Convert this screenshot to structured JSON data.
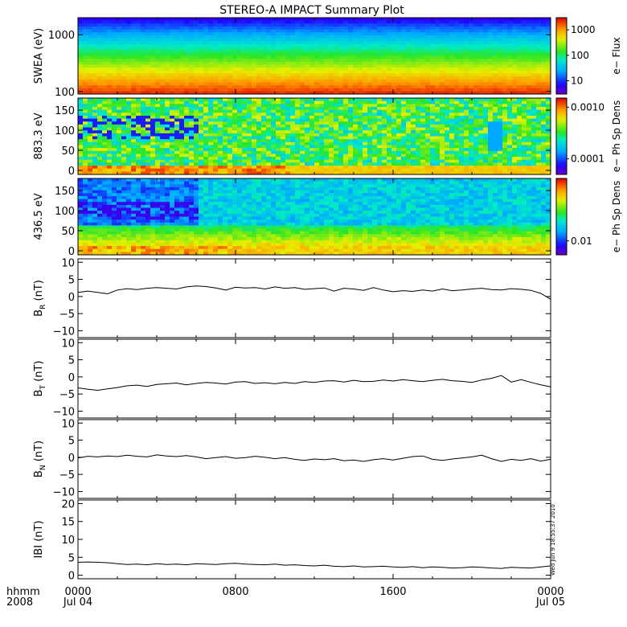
{
  "title": "STEREO-A IMPACT Summary Plot",
  "timestamp": "Wed Jun  9 18:55:37 2010",
  "time_axis": {
    "header": [
      "hhmm",
      "2008"
    ],
    "ticks": [
      {
        "time": "0000",
        "date": "Jul 04"
      },
      {
        "time": "0800",
        "date": ""
      },
      {
        "time": "1600",
        "date": ""
      },
      {
        "time": "0000",
        "date": "Jul 05"
      }
    ],
    "range_hours": [
      0,
      24
    ]
  },
  "chart_data": [
    {
      "type": "heatmap",
      "ylabel": "SWEA (eV)",
      "ylog": true,
      "ylim": [
        90,
        2000
      ],
      "yticks": [
        {
          "v": 100,
          "label": "100"
        },
        {
          "v": 1000,
          "label": "1000"
        }
      ],
      "colorbar": {
        "label": "e− Flux",
        "log": true,
        "range": [
          3,
          3000
        ],
        "ticks": [
          {
            "v": 10,
            "label": "10"
          },
          {
            "v": 100,
            "label": "100"
          },
          {
            "v": 1000,
            "label": "1000"
          }
        ]
      },
      "description_profile": [
        {
          "energy_eV": 100,
          "level": 0.97
        },
        {
          "energy_eV": 150,
          "level": 0.85
        },
        {
          "energy_eV": 300,
          "level": 0.62
        },
        {
          "energy_eV": 600,
          "level": 0.45
        },
        {
          "energy_eV": 1000,
          "level": 0.3
        },
        {
          "energy_eV": 1700,
          "level": 0.08
        }
      ]
    },
    {
      "type": "heatmap",
      "ylabel": "883.3 eV",
      "ylim": [
        -10,
        180
      ],
      "yticks": [
        {
          "v": 0,
          "label": "0"
        },
        {
          "v": 50,
          "label": "50"
        },
        {
          "v": 100,
          "label": "100"
        },
        {
          "v": 150,
          "label": "150"
        }
      ],
      "colorbar": {
        "label": "e− Ph Sp Dens",
        "log": true,
        "range": [
          5e-05,
          0.0015
        ],
        "ticks": [
          {
            "v": 0.0001,
            "label": "0.0001"
          },
          {
            "v": 0.001,
            "label": "0.0010"
          }
        ]
      }
    },
    {
      "type": "heatmap",
      "ylabel": "436.5 eV",
      "ylim": [
        -10,
        180
      ],
      "yticks": [
        {
          "v": 0,
          "label": "0"
        },
        {
          "v": 50,
          "label": "50"
        },
        {
          "v": 100,
          "label": "100"
        },
        {
          "v": 150,
          "label": "150"
        }
      ],
      "colorbar": {
        "label": "e− Ph Sp Dens",
        "log": true,
        "range": [
          0.006,
          0.1
        ],
        "ticks": [
          {
            "v": 0.01,
            "label": "0.01"
          }
        ]
      }
    },
    {
      "type": "line",
      "ylabel_main": "B",
      "ylabel_sub": "R",
      "ylabel_unit": " (nT)",
      "ylim": [
        -12,
        11
      ],
      "yticks": [
        {
          "v": -10,
          "label": "−10"
        },
        {
          "v": -5,
          "label": "−5"
        },
        {
          "v": 0,
          "label": "0"
        },
        {
          "v": 5,
          "label": "5"
        },
        {
          "v": 10,
          "label": "10"
        }
      ],
      "x_hours": [
        0,
        0.5,
        1,
        1.5,
        2,
        2.5,
        3,
        3.5,
        4,
        4.5,
        5,
        5.5,
        6,
        6.5,
        7,
        7.5,
        8,
        8.5,
        9,
        9.5,
        10,
        10.5,
        11,
        11.5,
        12,
        12.5,
        13,
        13.5,
        14,
        14.5,
        15,
        15.5,
        16,
        16.5,
        17,
        17.5,
        18,
        18.5,
        19,
        19.5,
        20,
        20.5,
        21,
        21.5,
        22,
        22.5,
        23,
        23.5,
        24
      ],
      "y": [
        1.2,
        1.6,
        1.2,
        0.8,
        1.9,
        2.3,
        2.0,
        2.4,
        2.6,
        2.4,
        2.2,
        2.8,
        3.1,
        2.9,
        2.5,
        1.9,
        2.7,
        2.5,
        2.6,
        2.2,
        2.8,
        2.4,
        2.6,
        2.1,
        2.3,
        2.5,
        1.6,
        2.4,
        2.2,
        1.8,
        2.6,
        1.9,
        1.4,
        1.7,
        1.5,
        1.9,
        1.6,
        2.2,
        1.7,
        1.9,
        2.2,
        2.4,
        2.0,
        1.9,
        2.3,
        2.1,
        1.8,
        0.9,
        -0.8
      ]
    },
    {
      "type": "line",
      "ylabel_main": "B",
      "ylabel_sub": "T",
      "ylabel_unit": " (nT)",
      "ylim": [
        -12,
        11
      ],
      "yticks": [
        {
          "v": -10,
          "label": "−10"
        },
        {
          "v": -5,
          "label": "−5"
        },
        {
          "v": 0,
          "label": "0"
        },
        {
          "v": 5,
          "label": "5"
        },
        {
          "v": 10,
          "label": "10"
        }
      ],
      "x_hours": [
        0,
        0.5,
        1,
        1.5,
        2,
        2.5,
        3,
        3.5,
        4,
        4.5,
        5,
        5.5,
        6,
        6.5,
        7,
        7.5,
        8,
        8.5,
        9,
        9.5,
        10,
        10.5,
        11,
        11.5,
        12,
        12.5,
        13,
        13.5,
        14,
        14.5,
        15,
        15.5,
        16,
        16.5,
        17,
        17.5,
        18,
        18.5,
        19,
        19.5,
        20,
        20.5,
        21,
        21.5,
        22,
        22.5,
        23,
        23.5,
        24
      ],
      "y": [
        -3.2,
        -3.6,
        -3.9,
        -3.5,
        -3.1,
        -2.6,
        -2.4,
        -2.8,
        -2.2,
        -2.0,
        -1.8,
        -2.3,
        -1.9,
        -1.6,
        -1.8,
        -2.1,
        -1.5,
        -1.4,
        -1.9,
        -1.7,
        -2.0,
        -1.6,
        -1.9,
        -1.4,
        -1.6,
        -1.2,
        -1.1,
        -1.5,
        -1.0,
        -1.4,
        -1.3,
        -0.9,
        -1.2,
        -0.8,
        -1.1,
        -1.4,
        -1.0,
        -0.7,
        -1.1,
        -1.3,
        -1.6,
        -0.9,
        -0.4,
        0.4,
        -1.5,
        -0.8,
        -1.6,
        -2.3,
        -2.9
      ]
    },
    {
      "type": "line",
      "ylabel_main": "B",
      "ylabel_sub": "N",
      "ylabel_unit": " (nT)",
      "ylim": [
        -12,
        11
      ],
      "yticks": [
        {
          "v": -10,
          "label": "−10"
        },
        {
          "v": -5,
          "label": "−5"
        },
        {
          "v": 0,
          "label": "0"
        },
        {
          "v": 5,
          "label": "5"
        },
        {
          "v": 10,
          "label": "10"
        }
      ],
      "x_hours": [
        0,
        0.5,
        1,
        1.5,
        2,
        2.5,
        3,
        3.5,
        4,
        4.5,
        5,
        5.5,
        6,
        6.5,
        7,
        7.5,
        8,
        8.5,
        9,
        9.5,
        10,
        10.5,
        11,
        11.5,
        12,
        12.5,
        13,
        13.5,
        14,
        14.5,
        15,
        15.5,
        16,
        16.5,
        17,
        17.5,
        18,
        18.5,
        19,
        19.5,
        20,
        20.5,
        21,
        21.5,
        22,
        22.5,
        23,
        23.5,
        24
      ],
      "y": [
        -0.2,
        0.3,
        0.1,
        0.4,
        0.2,
        0.6,
        0.3,
        0.1,
        0.7,
        0.4,
        0.2,
        0.5,
        0.1,
        -0.4,
        -0.1,
        0.2,
        -0.3,
        -0.1,
        0.3,
        0.0,
        -0.4,
        -0.1,
        -0.6,
        -0.9,
        -0.5,
        -0.7,
        -0.4,
        -1.0,
        -0.8,
        -1.2,
        -0.7,
        -0.4,
        -0.8,
        -0.3,
        0.2,
        0.4,
        -0.6,
        -0.9,
        -0.5,
        -0.2,
        0.1,
        0.6,
        -0.4,
        -1.2,
        -0.6,
        -0.9,
        -0.4,
        -1.1,
        -0.6
      ]
    },
    {
      "type": "line",
      "ylabel_main": "IBI",
      "ylabel_sub": "",
      "ylabel_unit": " (nT)",
      "ylim": [
        -1,
        21
      ],
      "yticks": [
        {
          "v": 0,
          "label": "0"
        },
        {
          "v": 5,
          "label": "5"
        },
        {
          "v": 10,
          "label": "10"
        },
        {
          "v": 15,
          "label": "15"
        },
        {
          "v": 20,
          "label": "20"
        }
      ],
      "x_hours": [
        0,
        0.5,
        1,
        1.5,
        2,
        2.5,
        3,
        3.5,
        4,
        4.5,
        5,
        5.5,
        6,
        6.5,
        7,
        7.5,
        8,
        8.5,
        9,
        9.5,
        10,
        10.5,
        11,
        11.5,
        12,
        12.5,
        13,
        13.5,
        14,
        14.5,
        15,
        15.5,
        16,
        16.5,
        17,
        17.5,
        18,
        18.5,
        19,
        19.5,
        20,
        20.5,
        21,
        21.5,
        22,
        22.5,
        23,
        23.5,
        24
      ],
      "y": [
        3.6,
        3.7,
        3.6,
        3.5,
        3.2,
        3.0,
        3.1,
        2.9,
        3.2,
        3.0,
        3.1,
        2.9,
        3.2,
        3.1,
        3.0,
        3.2,
        3.3,
        3.1,
        3.0,
        2.9,
        3.1,
        2.8,
        2.9,
        2.7,
        2.6,
        2.8,
        2.5,
        2.4,
        2.6,
        2.3,
        2.4,
        2.5,
        2.3,
        2.2,
        2.4,
        2.1,
        2.3,
        2.2,
        2.0,
        2.1,
        2.3,
        2.2,
        2.0,
        1.9,
        2.2,
        2.1,
        2.0,
        2.3,
        2.6
      ]
    }
  ]
}
